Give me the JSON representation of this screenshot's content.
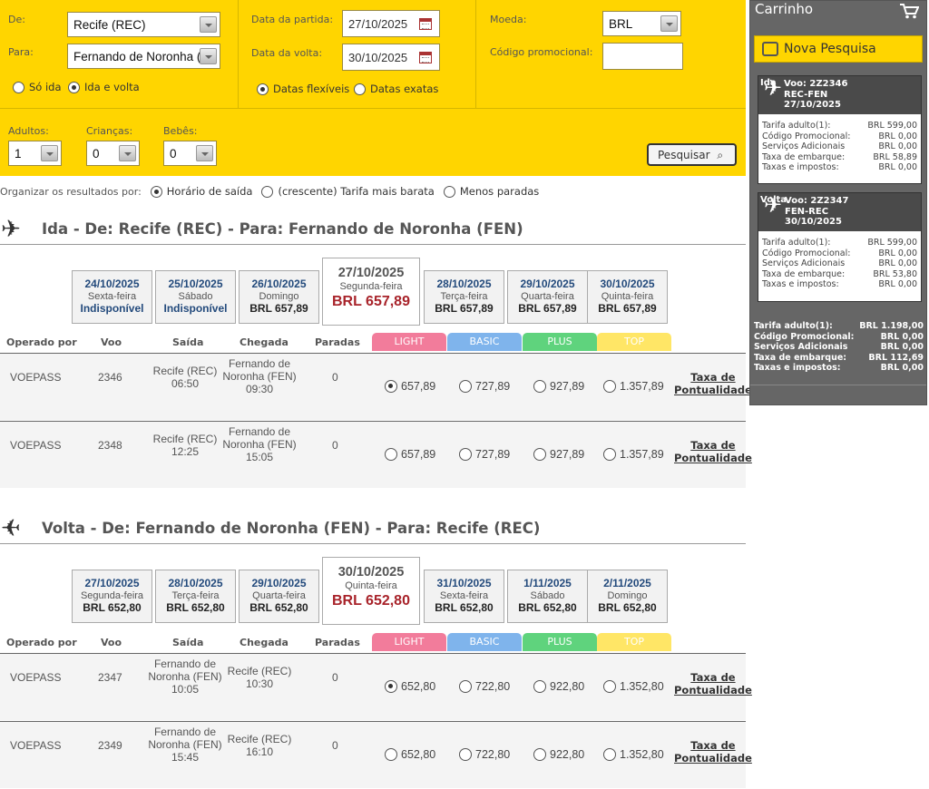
{
  "search": {
    "de_label": "De:",
    "de_value": "Recife (REC)",
    "para_label": "Para:",
    "para_value": "Fernando de Noronha (F",
    "trip_options": [
      "Só ida",
      "Ida e volta"
    ],
    "trip_selected": "Ida e volta",
    "partida_label": "Data da partida:",
    "partida_value": "27/10/2025",
    "volta_label": "Data da volta:",
    "volta_value": "30/10/2025",
    "date_options": [
      "Datas flexíveis",
      "Datas exatas"
    ],
    "date_selected": "Datas flexíveis",
    "moeda_label": "Moeda:",
    "moeda_value": "BRL",
    "promo_label": "Código promocional:",
    "promo_value": "",
    "adultos_label": "Adultos:",
    "adultos_value": "1",
    "criancas_label": "Crianças:",
    "criancas_value": "0",
    "bebes_label": "Bebês:",
    "bebes_value": "0",
    "search_button": "Pesquisar"
  },
  "sort": {
    "label": "Organizar os resultados por:",
    "options": [
      "Horário de saída",
      "(crescente) Tarifa mais barata",
      "Menos paradas"
    ],
    "selected": "Horário de saída"
  },
  "columns": {
    "operado": "Operado por",
    "voo": "Voo",
    "saida": "Saída",
    "chegada": "Chegada",
    "paradas": "Paradas",
    "tiers": [
      {
        "name": "LIGHT",
        "color": "#f27c9b"
      },
      {
        "name": "BASIC",
        "color": "#7fb4ec"
      },
      {
        "name": "PLUS",
        "color": "#5fd37d"
      },
      {
        "name": "TOP",
        "color": "#ffe666"
      }
    ],
    "taxa_line1": "Taxa de",
    "taxa_line2": "Pontualidade"
  },
  "outbound": {
    "title": "Ida - De: Recife (REC) - Para: Fernando de Noronha (FEN)",
    "dates": [
      {
        "date": "24/10/2025",
        "weekday": "Sexta-feira",
        "price": "Indisponível",
        "available": false
      },
      {
        "date": "25/10/2025",
        "weekday": "Sábado",
        "price": "Indisponível",
        "available": false
      },
      {
        "date": "26/10/2025",
        "weekday": "Domingo",
        "price": "BRL 657,89",
        "available": true
      },
      {
        "date": "27/10/2025",
        "weekday": "Segunda-feira",
        "price": "BRL 657,89",
        "available": true,
        "selected": true
      },
      {
        "date": "28/10/2025",
        "weekday": "Terça-feira",
        "price": "BRL 657,89",
        "available": true
      },
      {
        "date": "29/10/2025",
        "weekday": "Quarta-feira",
        "price": "BRL 657,89",
        "available": true
      },
      {
        "date": "30/10/2025",
        "weekday": "Quinta-feira",
        "price": "BRL 657,89",
        "available": true
      }
    ],
    "flights": [
      {
        "operator": "VOEPASS",
        "number": "2346",
        "dep": [
          "Recife (REC)",
          "06:50"
        ],
        "arr": [
          "Fernando de",
          "Noronha (FEN)",
          "09:30"
        ],
        "stops": "0",
        "fares": [
          "657,89",
          "727,89",
          "927,89",
          "1.357,89"
        ],
        "selected_fare": 0
      },
      {
        "operator": "VOEPASS",
        "number": "2348",
        "dep": [
          "Recife (REC)",
          "12:25"
        ],
        "arr": [
          "Fernando de",
          "Noronha (FEN)",
          "15:05"
        ],
        "stops": "0",
        "fares": [
          "657,89",
          "727,89",
          "927,89",
          "1.357,89"
        ],
        "selected_fare": -1
      }
    ]
  },
  "inbound": {
    "title": "Volta - De: Fernando de Noronha (FEN) - Para: Recife (REC)",
    "dates": [
      {
        "date": "27/10/2025",
        "weekday": "Segunda-feira",
        "price": "BRL 652,80",
        "available": true
      },
      {
        "date": "28/10/2025",
        "weekday": "Terça-feira",
        "price": "BRL 652,80",
        "available": true
      },
      {
        "date": "29/10/2025",
        "weekday": "Quarta-feira",
        "price": "BRL 652,80",
        "available": true
      },
      {
        "date": "30/10/2025",
        "weekday": "Quinta-feira",
        "price": "BRL 652,80",
        "available": true,
        "selected": true
      },
      {
        "date": "31/10/2025",
        "weekday": "Sexta-feira",
        "price": "BRL 652,80",
        "available": true
      },
      {
        "date": "1/11/2025",
        "weekday": "Sábado",
        "price": "BRL 652,80",
        "available": true
      },
      {
        "date": "2/11/2025",
        "weekday": "Domingo",
        "price": "BRL 652,80",
        "available": true
      }
    ],
    "flights": [
      {
        "operator": "VOEPASS",
        "number": "2347",
        "dep": [
          "Fernando de",
          "Noronha (FEN)",
          "10:05"
        ],
        "arr": [
          "Recife (REC)",
          "10:30"
        ],
        "stops": "0",
        "fares": [
          "652,80",
          "722,80",
          "922,80",
          "1.352,80"
        ],
        "selected_fare": 0
      },
      {
        "operator": "VOEPASS",
        "number": "2349",
        "dep": [
          "Fernando de",
          "Noronha (FEN)",
          "15:45"
        ],
        "arr": [
          "Recife (REC)",
          "16:10"
        ],
        "stops": "0",
        "fares": [
          "652,80",
          "722,80",
          "922,80",
          "1.352,80"
        ],
        "selected_fare": -1
      }
    ]
  },
  "cart": {
    "title": "Carrinho",
    "new_search": "Nova Pesquisa",
    "tickets": [
      {
        "tag": "Ida",
        "flight": "Voo: 2Z2346",
        "route": "REC-FEN",
        "date": "27/10/2025",
        "lines": [
          [
            "Tarifa adulto(1):",
            "BRL 599,00"
          ],
          [
            "Código Promocional:",
            "BRL 0,00"
          ],
          [
            "Serviços Adicionais",
            "BRL 0,00"
          ],
          [
            "Taxa de embarque:",
            "BRL 58,89"
          ],
          [
            "Taxas e impostos:",
            "BRL 0,00"
          ]
        ]
      },
      {
        "tag": "Volta",
        "flight": "Voo: 2Z2347",
        "route": "FEN-REC",
        "date": "30/10/2025",
        "lines": [
          [
            "Tarifa adulto(1):",
            "BRL 599,00"
          ],
          [
            "Código Promocional:",
            "BRL 0,00"
          ],
          [
            "Serviços Adicionais",
            "BRL 0,00"
          ],
          [
            "Taxa de embarque:",
            "BRL 53,80"
          ],
          [
            "Taxas e impostos:",
            "BRL 0,00"
          ]
        ]
      }
    ],
    "totals": [
      [
        "Tarifa adulto(1):",
        "BRL 1.198,00"
      ],
      [
        "Código Promocional:",
        "BRL 0,00"
      ],
      [
        "Serviços Adicionais",
        "BRL 0,00"
      ],
      [
        "Taxa de embarque:",
        "BRL 112,69"
      ],
      [
        "Taxas e impostos:",
        "BRL 0,00"
      ]
    ]
  }
}
